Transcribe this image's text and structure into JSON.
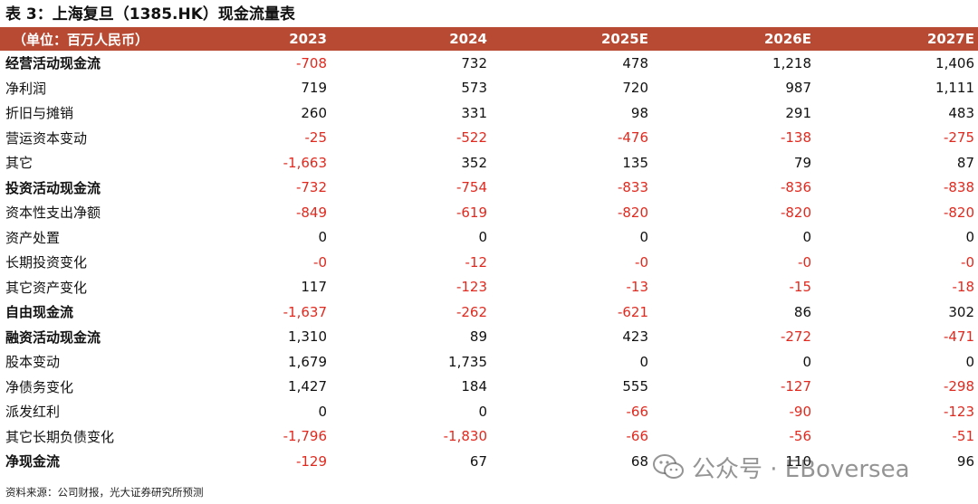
{
  "title": "表 3：上海复旦（1385.HK）现金流量表",
  "header": {
    "unit": "（单位：百万人民币）",
    "years": [
      "2023",
      "2024",
      "2025E",
      "2026E",
      "2027E"
    ]
  },
  "rows": [
    {
      "label": "经营活动现金流",
      "bold": true,
      "values": [
        "-708",
        "732",
        "478",
        "1,218",
        "1,406"
      ]
    },
    {
      "label": "净利润",
      "bold": false,
      "values": [
        "719",
        "573",
        "720",
        "987",
        "1,111"
      ]
    },
    {
      "label": "折旧与摊销",
      "bold": false,
      "values": [
        "260",
        "331",
        "98",
        "291",
        "483"
      ]
    },
    {
      "label": "营运资本变动",
      "bold": false,
      "values": [
        "-25",
        "-522",
        "-476",
        "-138",
        "-275"
      ]
    },
    {
      "label": "其它",
      "bold": false,
      "values": [
        "-1,663",
        "352",
        "135",
        "79",
        "87"
      ]
    },
    {
      "label": "投资活动现金流",
      "bold": true,
      "values": [
        "-732",
        "-754",
        "-833",
        "-836",
        "-838"
      ]
    },
    {
      "label": "资本性支出净额",
      "bold": false,
      "values": [
        "-849",
        "-619",
        "-820",
        "-820",
        "-820"
      ]
    },
    {
      "label": "资产处置",
      "bold": false,
      "values": [
        "0",
        "0",
        "0",
        "0",
        "0"
      ]
    },
    {
      "label": "长期投资变化",
      "bold": false,
      "values": [
        "-0",
        "-12",
        "-0",
        "-0",
        "-0"
      ]
    },
    {
      "label": "其它资产变化",
      "bold": false,
      "values": [
        "117",
        "-123",
        "-13",
        "-15",
        "-18"
      ]
    },
    {
      "label": "自由现金流",
      "bold": true,
      "values": [
        "-1,637",
        "-262",
        "-621",
        "86",
        "302"
      ]
    },
    {
      "label": "融资活动现金流",
      "bold": true,
      "values": [
        "1,310",
        "89",
        "423",
        "-272",
        "-471"
      ]
    },
    {
      "label": "股本变动",
      "bold": false,
      "values": [
        "1,679",
        "1,735",
        "0",
        "0",
        "0"
      ]
    },
    {
      "label": "净债务变化",
      "bold": false,
      "values": [
        "1,427",
        "184",
        "555",
        "-127",
        "-298"
      ]
    },
    {
      "label": "派发红利",
      "bold": false,
      "values": [
        "0",
        "0",
        "-66",
        "-90",
        "-123"
      ]
    },
    {
      "label": "其它长期负债变化",
      "bold": false,
      "values": [
        "-1,796",
        "-1,830",
        "-66",
        "-56",
        "-51"
      ]
    },
    {
      "label": "净现金流",
      "bold": true,
      "values": [
        "-129",
        "67",
        "68",
        "110",
        "96"
      ]
    }
  ],
  "source": "资料来源：公司财报，光大证券研究所预测",
  "watermark": "公众号 · EBoversea",
  "colors": {
    "header_bg": "#b84a33",
    "negative": "#e02a1f"
  },
  "icons": {
    "watermark_icon": "wechat-icon"
  }
}
